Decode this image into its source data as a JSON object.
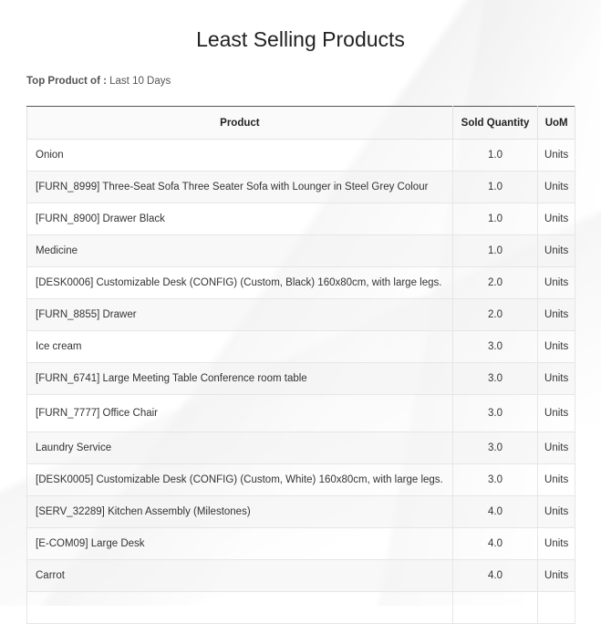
{
  "report": {
    "title": "Least Selling Products",
    "filter_label": "Top Product of :",
    "filter_value": "Last 10 Days",
    "columns": {
      "product": "Product",
      "sold_quantity": "Sold Quantity",
      "uom": "UoM"
    },
    "rows": [
      {
        "product": "Onion",
        "qty": "1.0",
        "uom": "Units"
      },
      {
        "product": "[FURN_8999] Three-Seat Sofa Three Seater Sofa with Lounger in Steel Grey Colour",
        "qty": "1.0",
        "uom": "Units"
      },
      {
        "product": "[FURN_8900] Drawer Black",
        "qty": "1.0",
        "uom": "Units"
      },
      {
        "product": "Medicine",
        "qty": "1.0",
        "uom": "Units"
      },
      {
        "product": "[DESK0006] Customizable Desk (CONFIG) (Custom, Black) 160x80cm, with large legs.",
        "qty": "2.0",
        "uom": "Units"
      },
      {
        "product": "[FURN_8855] Drawer",
        "qty": "2.0",
        "uom": "Units"
      },
      {
        "product": "Ice cream",
        "qty": "3.0",
        "uom": "Units"
      },
      {
        "product": "[FURN_6741] Large Meeting Table Conference room table",
        "qty": "3.0",
        "uom": "Units"
      },
      {
        "product": "[FURN_7777] Office Chair",
        "qty": "3.0",
        "uom": "Units"
      },
      {
        "product": "Laundry Service",
        "qty": "3.0",
        "uom": "Units"
      },
      {
        "product": "[DESK0005] Customizable Desk (CONFIG) (Custom, White) 160x80cm, with large legs.",
        "qty": "3.0",
        "uom": "Units"
      },
      {
        "product": "[SERV_32289] Kitchen Assembly (Milestones)",
        "qty": "4.0",
        "uom": "Units"
      },
      {
        "product": "[E-COM09] Large Desk",
        "qty": "4.0",
        "uom": "Units"
      },
      {
        "product": "Carrot",
        "qty": "4.0",
        "uom": "Units"
      },
      {
        "product": "",
        "qty": "",
        "uom": ""
      }
    ]
  }
}
